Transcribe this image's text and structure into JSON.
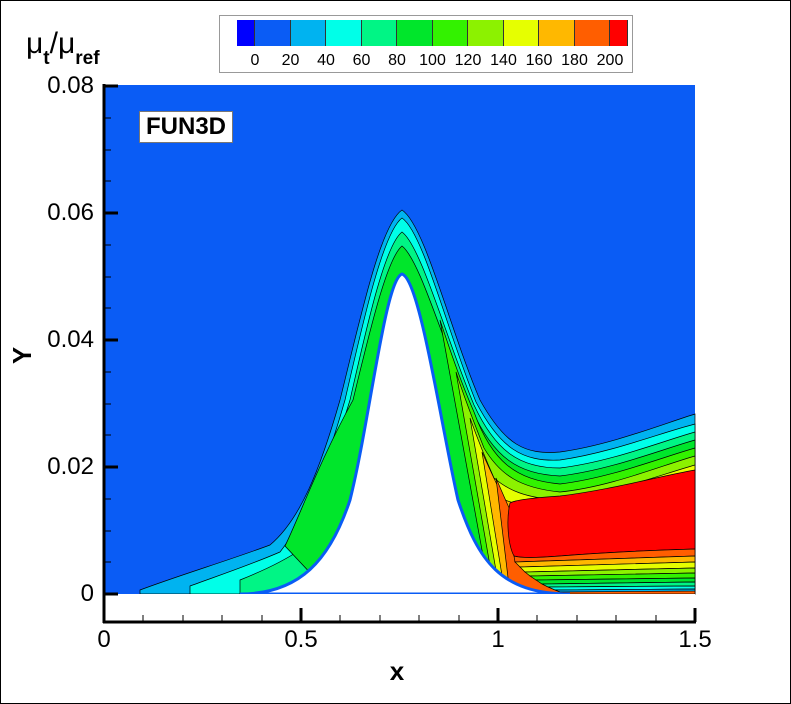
{
  "chart_data": {
    "type": "contour",
    "title": "",
    "variable_label": "μt/μref",
    "variable_label_parts": {
      "base": "μ",
      "sub1": "t",
      "sep": "/",
      "sub2": "ref"
    },
    "annotation": "FUN3D",
    "xlabel": "x",
    "ylabel": "Y",
    "xlim": [
      0,
      1.5
    ],
    "ylim": [
      0,
      0.08
    ],
    "x_ticks": [
      "0",
      "0.5",
      "1",
      "1.5"
    ],
    "y_ticks": [
      "0",
      "0.02",
      "0.04",
      "0.06",
      "0.08"
    ],
    "grid": false,
    "legend_position": "top",
    "colorbar": {
      "levels": [
        0,
        20,
        40,
        60,
        80,
        100,
        120,
        140,
        160,
        180,
        200
      ],
      "tick_labels": [
        "0",
        "20",
        "40",
        "60",
        "80",
        "100",
        "120",
        "140",
        "160",
        "180",
        "200"
      ],
      "colors": [
        "#0000ff",
        "#0a5cf5",
        "#00b3f0",
        "#00ffe8",
        "#00f585",
        "#00e62b",
        "#33f200",
        "#8cf200",
        "#e6ff00",
        "#ffb800",
        "#ff5e00",
        "#ff0000"
      ]
    },
    "geometry": {
      "bump_peak_x": 0.75,
      "bump_peak_y": 0.05,
      "bump_base_x_range": [
        0.4,
        1.1
      ]
    },
    "field_summary": {
      "freestream_value_band": "0-20",
      "max_region": ">200 downstream of bump, x 1.05-1.5, y 0.005-0.018",
      "boundary_layer_top_at_x1.5": 0.028
    }
  }
}
